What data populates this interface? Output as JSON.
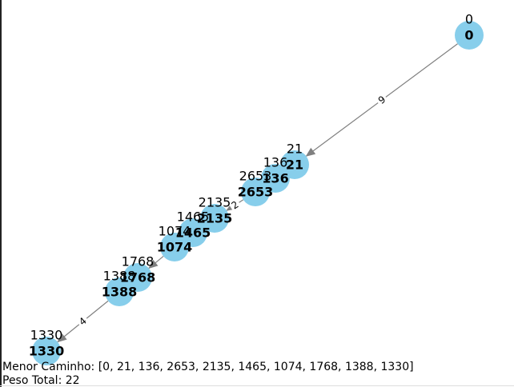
{
  "colors": {
    "node_fill": "#87ceeb",
    "edge": "#808080",
    "text": "#000000"
  },
  "graph": {
    "nodes": [
      {
        "id": "0",
        "label": "0"
      },
      {
        "id": "21",
        "label": "21"
      },
      {
        "id": "136",
        "label": "136"
      },
      {
        "id": "2653",
        "label": "2653"
      },
      {
        "id": "2135",
        "label": "2135"
      },
      {
        "id": "1465",
        "label": "1465"
      },
      {
        "id": "1074",
        "label": "1074"
      },
      {
        "id": "1768",
        "label": "1768"
      },
      {
        "id": "1388",
        "label": "1388"
      },
      {
        "id": "1330",
        "label": "1330"
      }
    ],
    "edges": [
      {
        "from": "0",
        "to": "21",
        "weight": "9"
      },
      {
        "from": "21",
        "to": "136",
        "weight": ""
      },
      {
        "from": "136",
        "to": "2653",
        "weight": ""
      },
      {
        "from": "2653",
        "to": "2135",
        "weight": "2"
      },
      {
        "from": "2135",
        "to": "1465",
        "weight": ""
      },
      {
        "from": "1465",
        "to": "1074",
        "weight": ""
      },
      {
        "from": "1074",
        "to": "1768",
        "weight": ""
      },
      {
        "from": "1768",
        "to": "1388",
        "weight": "2"
      },
      {
        "from": "1388",
        "to": "1330",
        "weight": "4"
      }
    ]
  },
  "footer": {
    "path_text": "Menor Caminho: [0, 21, 136, 2653, 2135, 1465, 1074, 1768, 1388, 1330]",
    "weight_text": "Peso Total: 22"
  }
}
